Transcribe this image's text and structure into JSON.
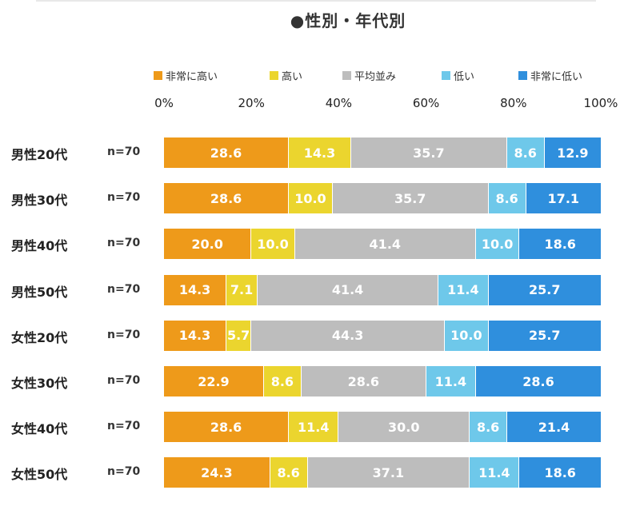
{
  "title": "●性別・年代別",
  "chart_data": {
    "type": "bar",
    "orientation": "horizontal",
    "stacked": true,
    "title": "●性別・年代別",
    "xlim": [
      0,
      100
    ],
    "x_ticks": [
      "0%",
      "20%",
      "40%",
      "60%",
      "80%",
      "100%"
    ],
    "legend_position": "top",
    "categories": [
      "男性20代",
      "男性30代",
      "男性40代",
      "男性50代",
      "女性20代",
      "女性30代",
      "女性40代",
      "女性50代"
    ],
    "sample_sizes": [
      "n=70",
      "n=70",
      "n=70",
      "n=70",
      "n=70",
      "n=70",
      "n=70",
      "n=70"
    ],
    "series": [
      {
        "name": "非常に高い",
        "color": "#ee9a1a",
        "values": [
          28.6,
          28.6,
          20.0,
          14.3,
          14.3,
          22.9,
          28.6,
          24.3
        ]
      },
      {
        "name": "高い",
        "color": "#ebd52e",
        "values": [
          14.3,
          10.0,
          10.0,
          7.1,
          5.7,
          8.6,
          11.4,
          8.6
        ]
      },
      {
        "name": "平均並み",
        "color": "#bdbdbd",
        "values": [
          35.7,
          35.7,
          41.4,
          41.4,
          44.3,
          28.6,
          30.0,
          37.1
        ]
      },
      {
        "name": "低い",
        "color": "#6ec8ea",
        "values": [
          8.6,
          8.6,
          10.0,
          11.4,
          10.0,
          11.4,
          8.6,
          11.4
        ]
      },
      {
        "name": "非常に低い",
        "color": "#2f8fdd",
        "values": [
          12.9,
          17.1,
          18.6,
          25.7,
          25.7,
          28.6,
          21.4,
          18.6
        ]
      }
    ]
  }
}
